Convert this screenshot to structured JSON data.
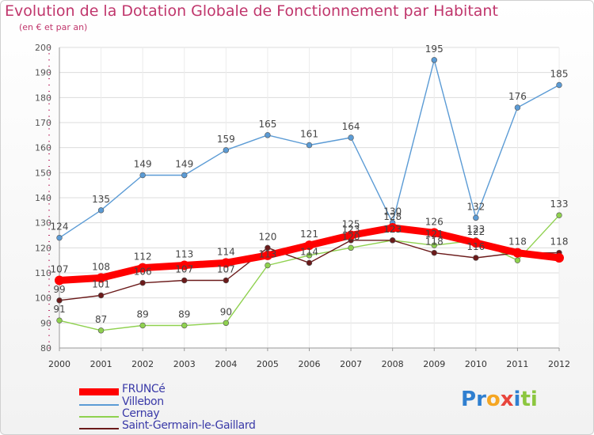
{
  "chart_data": {
    "type": "line",
    "title": "Evolution de la Dotation Globale de Fonctionnement par Habitant",
    "subtitle": "(en € et par an)",
    "xlabel": "",
    "ylabel": "",
    "ylim": [
      80,
      200
    ],
    "yticks": [
      80,
      90,
      100,
      110,
      120,
      130,
      140,
      150,
      160,
      170,
      180,
      190,
      200
    ],
    "x": [
      "2000",
      "2001",
      "2002",
      "2003",
      "2004",
      "2005",
      "2006",
      "2007",
      "2008",
      "2009",
      "2010",
      "2011",
      "2012"
    ],
    "series": [
      {
        "name": "FRUNCé",
        "color": "#ff0000",
        "values": [
          107,
          108,
          112,
          113,
          114,
          117,
          121,
          125,
          128,
          126,
          122,
          118,
          116
        ],
        "labels_shown": [
          true,
          true,
          true,
          true,
          true,
          false,
          true,
          true,
          true,
          true,
          true,
          false,
          false
        ]
      },
      {
        "name": "Villebon",
        "color": "#5b9bd5",
        "values": [
          124,
          135,
          149,
          149,
          159,
          165,
          161,
          164,
          130,
          195,
          132,
          176,
          185
        ],
        "labels_shown": [
          true,
          true,
          true,
          true,
          true,
          true,
          true,
          true,
          true,
          true,
          true,
          true,
          true
        ]
      },
      {
        "name": "Cernay",
        "color": "#8fd14f",
        "values": [
          91,
          87,
          89,
          89,
          90,
          113,
          117,
          120,
          123,
          121,
          123,
          115,
          133
        ],
        "labels_shown": [
          true,
          true,
          true,
          true,
          true,
          true,
          false,
          true,
          true,
          true,
          true,
          false,
          true
        ]
      },
      {
        "name": "Saint-Germain-le-Gaillard",
        "color": "#6b1a1a",
        "values": [
          99,
          101,
          106,
          107,
          107,
          120,
          114,
          123,
          123,
          118,
          116,
          118,
          118
        ],
        "labels_shown": [
          true,
          true,
          true,
          true,
          true,
          true,
          true,
          true,
          true,
          true,
          true,
          true,
          true
        ]
      }
    ]
  },
  "logo": {
    "text": "Proxiti",
    "letters": [
      "P",
      "r",
      "o",
      "x",
      "i",
      "t",
      "i"
    ],
    "colors": [
      "#2f7fd0",
      "#2f7fd0",
      "#f5a623",
      "#e8453c",
      "#2f7fd0",
      "#8cc63f",
      "#8cc63f"
    ]
  }
}
